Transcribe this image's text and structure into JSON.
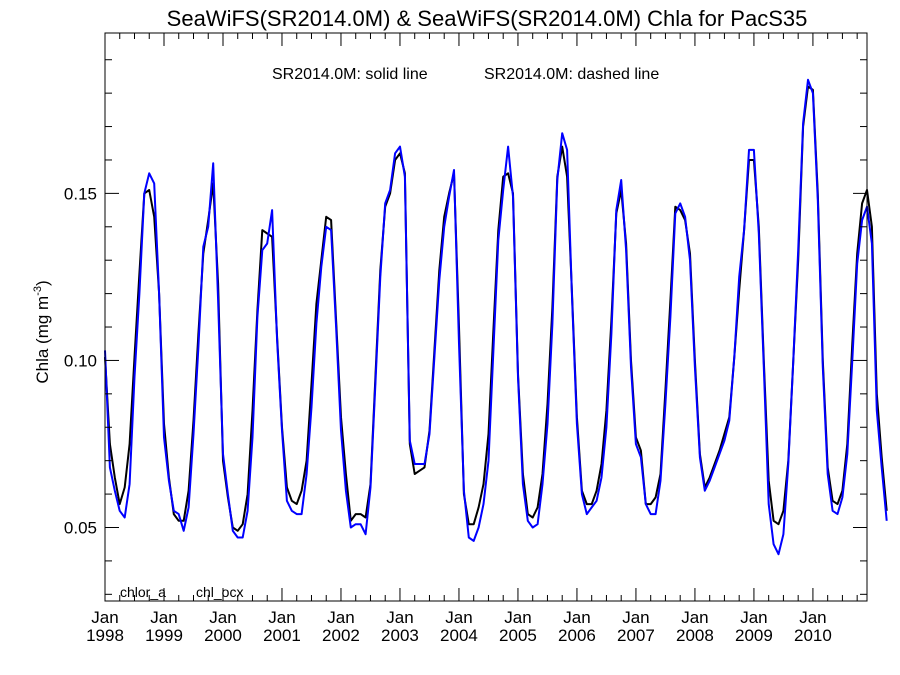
{
  "chart_data": {
    "type": "line",
    "title": "SeaWiFS(SR2014.0M) & SeaWiFS(SR2014.0M)  Chla for PacS35",
    "subtitle_left": "SR2014.0M: solid line",
    "subtitle_right": "SR2014.0M: dashed line",
    "ylabel_prefix": "Chla (mg m",
    "ylabel_sup": "-3",
    "ylabel_suffix": ")",
    "xlim": [
      "1998-01",
      "2010-12"
    ],
    "ylim": [
      0.028,
      0.198
    ],
    "yticks": [
      {
        "value": 0.05,
        "label": "0.05"
      },
      {
        "value": 0.1,
        "label": "0.10"
      },
      {
        "value": 0.15,
        "label": "0.15"
      }
    ],
    "xticks": [
      {
        "date": "1998-01",
        "month": "Jan",
        "year": "1998"
      },
      {
        "date": "1999-01",
        "month": "Jan",
        "year": "1999"
      },
      {
        "date": "2000-01",
        "month": "Jan",
        "year": "2000"
      },
      {
        "date": "2001-01",
        "month": "Jan",
        "year": "2001"
      },
      {
        "date": "2002-01",
        "month": "Jan",
        "year": "2002"
      },
      {
        "date": "2003-01",
        "month": "Jan",
        "year": "2003"
      },
      {
        "date": "2004-01",
        "month": "Jan",
        "year": "2004"
      },
      {
        "date": "2005-01",
        "month": "Jan",
        "year": "2005"
      },
      {
        "date": "2006-01",
        "month": "Jan",
        "year": "2006"
      },
      {
        "date": "2007-01",
        "month": "Jan",
        "year": "2007"
      },
      {
        "date": "2008-01",
        "month": "Jan",
        "year": "2008"
      },
      {
        "date": "2009-01",
        "month": "Jan",
        "year": "2009"
      },
      {
        "date": "2010-01",
        "month": "Jan",
        "year": "2010"
      }
    ],
    "start": "1998-01",
    "series": [
      {
        "name": "chlor_a",
        "color": "#000000",
        "values": [
          0.101,
          0.075,
          0.065,
          0.057,
          0.062,
          0.075,
          0.101,
          0.126,
          0.15,
          0.151,
          0.143,
          0.12,
          0.081,
          0.065,
          0.054,
          0.052,
          0.052,
          0.061,
          0.082,
          0.108,
          0.132,
          0.142,
          0.153,
          0.123,
          0.07,
          0.059,
          0.05,
          0.049,
          0.051,
          0.06,
          0.085,
          0.115,
          0.139,
          0.138,
          0.137,
          0.107,
          0.08,
          0.062,
          0.058,
          0.057,
          0.061,
          0.07,
          0.093,
          0.117,
          0.13,
          0.143,
          0.142,
          0.112,
          0.083,
          0.066,
          0.052,
          0.054,
          0.054,
          0.053,
          0.063,
          0.095,
          0.127,
          0.146,
          0.15,
          0.16,
          0.162,
          0.156,
          0.075,
          0.066,
          0.067,
          0.068,
          0.079,
          0.103,
          0.127,
          0.143,
          0.15,
          0.156,
          0.11,
          0.06,
          0.051,
          0.051,
          0.056,
          0.063,
          0.078,
          0.109,
          0.139,
          0.155,
          0.156,
          0.15,
          0.096,
          0.066,
          0.054,
          0.053,
          0.056,
          0.066,
          0.087,
          0.116,
          0.155,
          0.164,
          0.155,
          0.12,
          0.083,
          0.061,
          0.057,
          0.057,
          0.061,
          0.069,
          0.085,
          0.112,
          0.144,
          0.151,
          0.135,
          0.1,
          0.077,
          0.073,
          0.057,
          0.057,
          0.059,
          0.066,
          0.091,
          0.118,
          0.146,
          0.145,
          0.142,
          0.132,
          0.1,
          0.072,
          0.062,
          0.065,
          0.069,
          0.073,
          0.078,
          0.083,
          0.101,
          0.121,
          0.139,
          0.16,
          0.16,
          0.14,
          0.1,
          0.064,
          0.052,
          0.051,
          0.055,
          0.07,
          0.1,
          0.13,
          0.17,
          0.182,
          0.181,
          0.15,
          0.1,
          0.068,
          0.058,
          0.057,
          0.061,
          0.075,
          0.105,
          0.132,
          0.147,
          0.151,
          0.14,
          0.09,
          0.071,
          0.055
        ]
      },
      {
        "name": "chl_ocx",
        "color": "#0000ff",
        "values": [
          0.103,
          0.068,
          0.061,
          0.055,
          0.053,
          0.063,
          0.095,
          0.12,
          0.15,
          0.156,
          0.153,
          0.12,
          0.077,
          0.064,
          0.055,
          0.054,
          0.049,
          0.056,
          0.078,
          0.104,
          0.134,
          0.14,
          0.159,
          0.118,
          0.072,
          0.06,
          0.049,
          0.047,
          0.047,
          0.055,
          0.077,
          0.113,
          0.133,
          0.135,
          0.145,
          0.106,
          0.079,
          0.058,
          0.055,
          0.054,
          0.054,
          0.066,
          0.086,
          0.111,
          0.128,
          0.14,
          0.139,
          0.11,
          0.079,
          0.061,
          0.05,
          0.051,
          0.051,
          0.048,
          0.062,
          0.093,
          0.125,
          0.147,
          0.151,
          0.162,
          0.164,
          0.155,
          0.076,
          0.069,
          0.069,
          0.069,
          0.078,
          0.101,
          0.124,
          0.14,
          0.149,
          0.157,
          0.105,
          0.061,
          0.047,
          0.046,
          0.05,
          0.057,
          0.07,
          0.103,
          0.136,
          0.151,
          0.164,
          0.149,
          0.095,
          0.063,
          0.052,
          0.05,
          0.051,
          0.063,
          0.081,
          0.111,
          0.154,
          0.168,
          0.163,
          0.119,
          0.081,
          0.06,
          0.054,
          0.056,
          0.058,
          0.065,
          0.08,
          0.108,
          0.145,
          0.154,
          0.133,
          0.098,
          0.075,
          0.071,
          0.057,
          0.054,
          0.054,
          0.064,
          0.087,
          0.113,
          0.144,
          0.147,
          0.143,
          0.13,
          0.098,
          0.071,
          0.061,
          0.064,
          0.068,
          0.072,
          0.076,
          0.082,
          0.101,
          0.125,
          0.139,
          0.163,
          0.163,
          0.138,
          0.098,
          0.057,
          0.045,
          0.042,
          0.048,
          0.069,
          0.1,
          0.133,
          0.171,
          0.184,
          0.18,
          0.148,
          0.098,
          0.066,
          0.055,
          0.054,
          0.059,
          0.072,
          0.1,
          0.129,
          0.142,
          0.146,
          0.135,
          0.085,
          0.068,
          0.052
        ]
      }
    ],
    "legend_placement": "bottom-left",
    "grid": false
  }
}
